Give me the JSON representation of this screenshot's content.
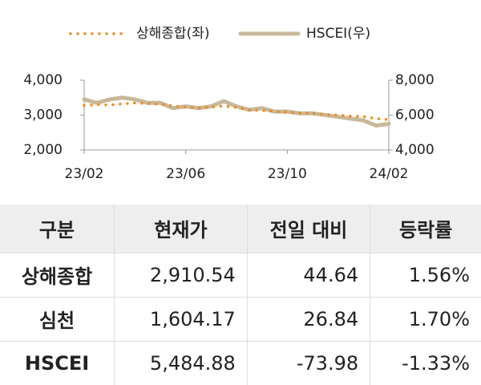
{
  "chart_data": {
    "type": "line",
    "categories": [
      "23/02",
      null,
      null,
      null,
      null,
      null,
      null,
      null,
      "23/06",
      null,
      null,
      null,
      null,
      null,
      null,
      null,
      "23/10",
      null,
      null,
      null,
      null,
      null,
      null,
      null,
      "24/02"
    ],
    "series": [
      {
        "name": "상해종합(좌)",
        "color": "#f08a24",
        "style": "dotted",
        "values": [
          3280,
          3300,
          3290,
          3320,
          3350,
          3330,
          3310,
          3260,
          3230,
          3200,
          3230,
          3260,
          3220,
          3150,
          3130,
          3110,
          3080,
          3060,
          3050,
          3020,
          3000,
          2970,
          2960,
          2900,
          2870
        ]
      },
      {
        "name": "HSCEI(우)",
        "color": "#c8b89a",
        "style": "solid",
        "axis": "y2",
        "values": [
          6900,
          6700,
          6900,
          7000,
          6900,
          6700,
          6700,
          6400,
          6500,
          6400,
          6500,
          6800,
          6500,
          6300,
          6400,
          6200,
          6200,
          6100,
          6100,
          6000,
          5900,
          5800,
          5700,
          5400,
          5500
        ]
      }
    ],
    "ylim": [
      2000,
      4000
    ],
    "yticks": [
      {
        "value": 2000,
        "label": "2,000"
      },
      {
        "value": 3000,
        "label": "3,000"
      },
      {
        "value": 4000,
        "label": "4,000"
      }
    ],
    "y2lim": [
      4000,
      8000
    ],
    "y2ticks": [
      {
        "value": 4000,
        "label": "4,000"
      },
      {
        "value": 6000,
        "label": "6,000"
      },
      {
        "value": 8000,
        "label": "8,000"
      }
    ],
    "grid": false
  },
  "table": {
    "header": [
      "구분",
      "현재가",
      "전일 대비",
      "등락률"
    ],
    "rows": [
      [
        "상해종합",
        "2,910.54",
        "44.64",
        "1.56%"
      ],
      [
        "심천",
        "1,604.17",
        "26.84",
        "1.70%"
      ],
      [
        "HSCEI",
        "5,484.88",
        "-73.98",
        "-1.33%"
      ]
    ]
  }
}
